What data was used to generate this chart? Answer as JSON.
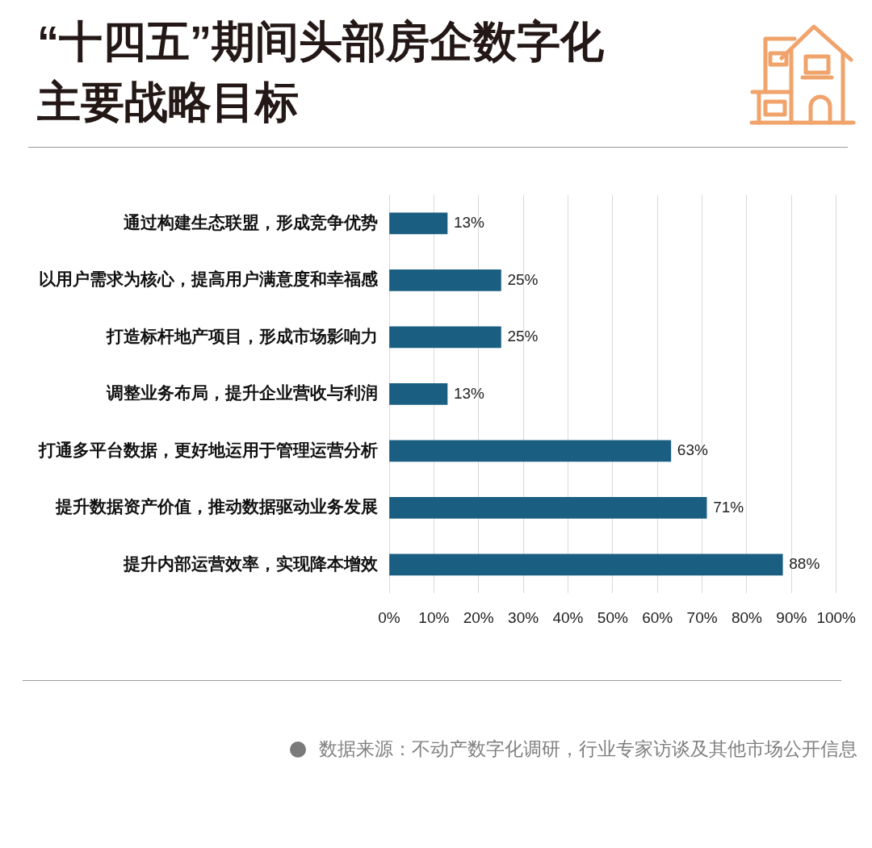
{
  "chart_data": {
    "type": "bar",
    "orientation": "horizontal",
    "title": "“十四五”期间头部房企数字化主要战略目标",
    "categories": [
      "通过构建生态联盟，形成竞争优势",
      "以用户需求为核心，提高用户满意度和幸福感",
      "打造标杆地产项目，形成市场影响力",
      "调整业务布局，提升企业营收与利润",
      "打通多平台数据，更好地运用于管理运营分析",
      "提升数据资产价值，推动数据驱动业务发展",
      "提升内部运营效率，实现降本增效"
    ],
    "values": [
      13,
      25,
      25,
      13,
      63,
      71,
      88
    ],
    "value_labels": [
      "13%",
      "25%",
      "25%",
      "13%",
      "63%",
      "71%",
      "88%"
    ],
    "color": "#1a5e82",
    "xlim": [
      0,
      100
    ],
    "xticks": [
      {
        "value": 0,
        "label": "0%"
      },
      {
        "value": 10,
        "label": "10%"
      },
      {
        "value": 20,
        "label": "20%"
      },
      {
        "value": 30,
        "label": "30%"
      },
      {
        "value": 40,
        "label": "40%"
      },
      {
        "value": 50,
        "label": "50%"
      },
      {
        "value": 60,
        "label": "60%"
      },
      {
        "value": 70,
        "label": "70%"
      },
      {
        "value": 80,
        "label": "80%"
      },
      {
        "value": 90,
        "label": "90%"
      },
      {
        "value": 100,
        "label": "100%"
      }
    ],
    "grid": "x",
    "annotations": [
      "数据来源：不动产数字化调研，行业专家访谈及其他市场公开信息"
    ]
  }
}
